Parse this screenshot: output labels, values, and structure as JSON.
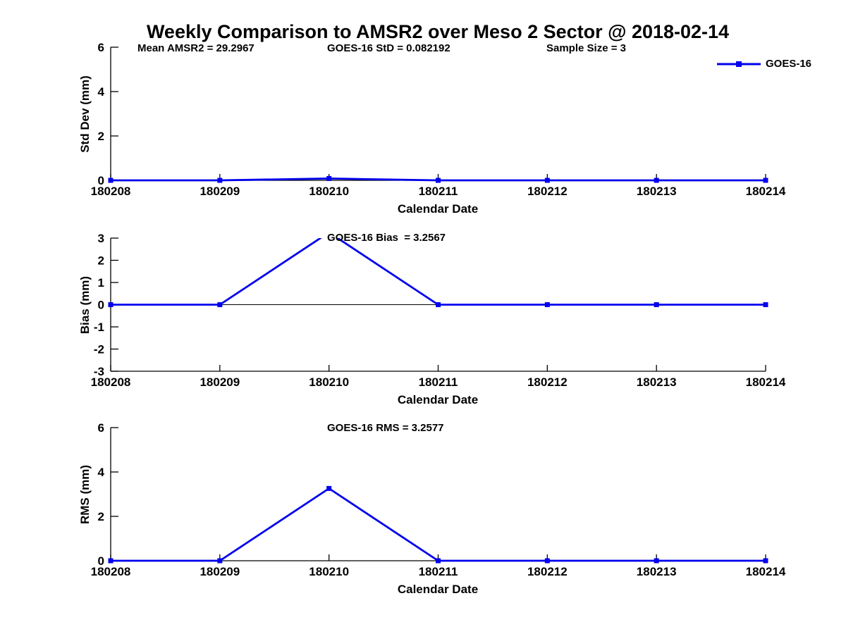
{
  "title": "Weekly Comparison to AMSR2 over Meso 2 Sector @ 2018-02-14",
  "colors": {
    "series": "#0000ee",
    "axis": "#000000"
  },
  "legend": {
    "label": "GOES-16"
  },
  "chart_data": [
    {
      "type": "line",
      "name": "std-dev",
      "ylabel": "Std Dev (mm)",
      "xlabel": "Calendar Date",
      "ylim": [
        0,
        6
      ],
      "yticks": [
        0,
        2,
        4,
        6
      ],
      "grid": false,
      "legend_position": "top-right",
      "categories": [
        "180208",
        "180209",
        "180210",
        "180211",
        "180212",
        "180213",
        "180214"
      ],
      "series": [
        {
          "name": "GOES-16",
          "values": [
            0,
            0,
            0.082192,
            0,
            0,
            0,
            0
          ]
        }
      ],
      "annotations": {
        "mean_amsr2": "Mean AMSR2 = 29.2967",
        "goes16_std": "GOES-16 StD = 0.082192",
        "sample_size": "Sample Size = 3"
      }
    },
    {
      "type": "line",
      "name": "bias",
      "ylabel": "Bias (mm)",
      "xlabel": "Calendar Date",
      "ylim": [
        -3,
        3
      ],
      "yticks": [
        3,
        2,
        1,
        0,
        -1,
        -2,
        -3
      ],
      "grid": false,
      "zero_line": true,
      "categories": [
        "180208",
        "180209",
        "180210",
        "180211",
        "180212",
        "180213",
        "180214"
      ],
      "series": [
        {
          "name": "GOES-16",
          "values": [
            0,
            0,
            3.2567,
            0,
            0,
            0,
            0
          ]
        }
      ],
      "annotations": {
        "goes16_bias": "GOES-16 Bias  = 3.2567"
      }
    },
    {
      "type": "line",
      "name": "rms",
      "ylabel": "RMS (mm)",
      "xlabel": "Calendar Date",
      "ylim": [
        0,
        6
      ],
      "yticks": [
        0,
        2,
        4,
        6
      ],
      "grid": false,
      "categories": [
        "180208",
        "180209",
        "180210",
        "180211",
        "180212",
        "180213",
        "180214"
      ],
      "series": [
        {
          "name": "GOES-16",
          "values": [
            0,
            0,
            3.2577,
            0,
            0,
            0,
            0
          ]
        }
      ],
      "annotations": {
        "goes16_rms": "GOES-16 RMS = 3.2577"
      }
    }
  ]
}
